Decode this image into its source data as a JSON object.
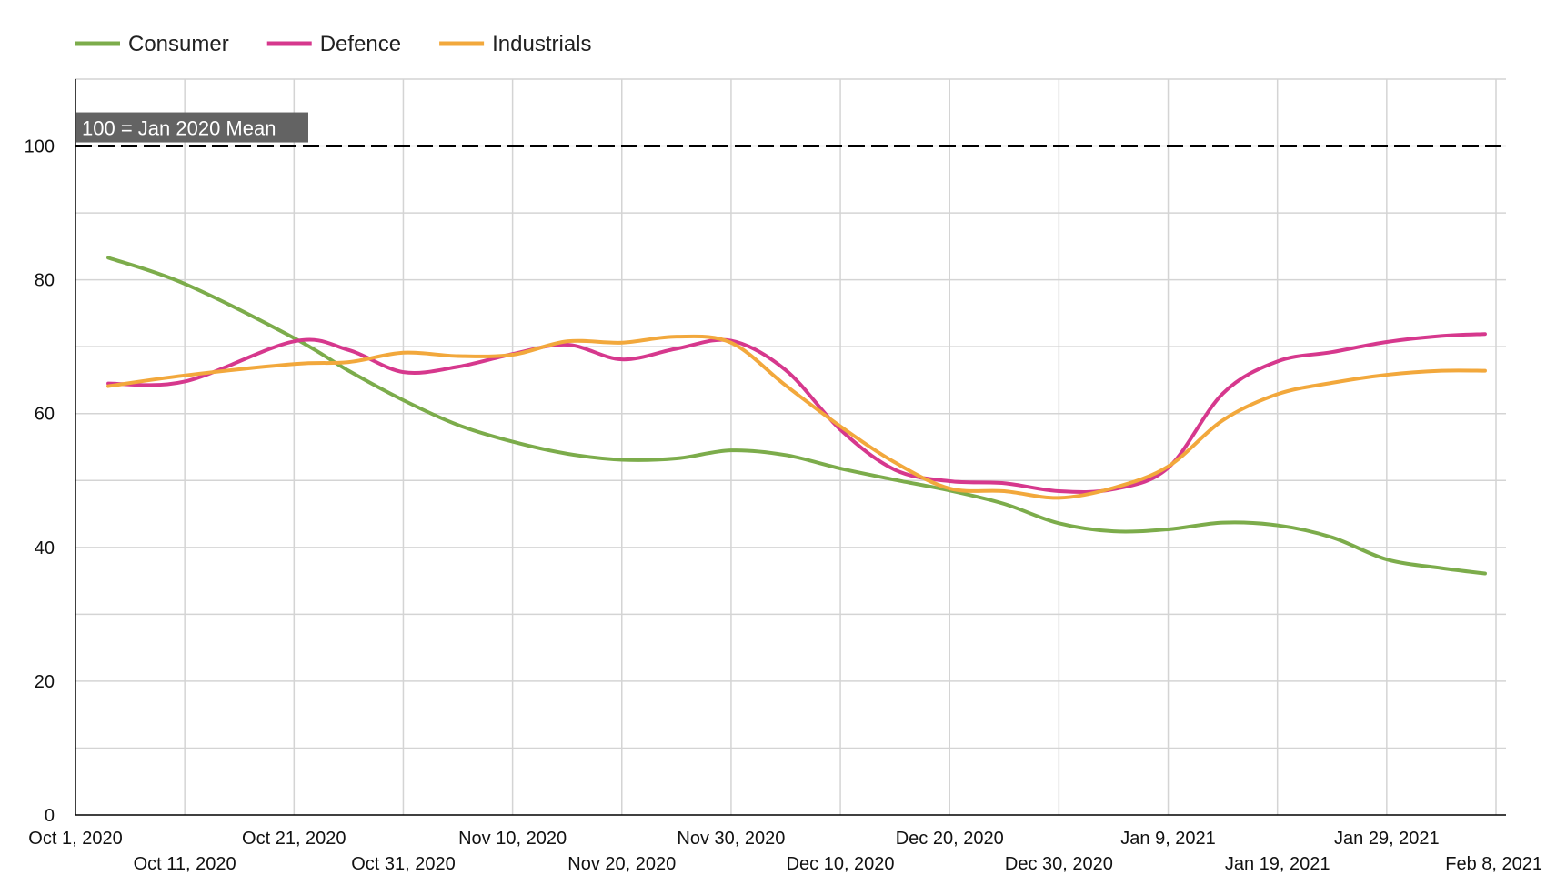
{
  "chart_data": {
    "type": "line",
    "title": "",
    "xlabel": "",
    "ylabel": "",
    "x_axis": {
      "type": "date",
      "min": "2020-10-01",
      "max": "2021-02-08",
      "ticks_row1": [
        "Oct 1, 2020",
        "Oct 21, 2020",
        "Nov 10, 2020",
        "Nov 30, 2020",
        "Dec 20, 2020",
        "Jan 9, 2021",
        "Jan 29, 2021"
      ],
      "ticks_row2": [
        "Oct 11, 2020",
        "Oct 31, 2020",
        "Nov 20, 2020",
        "Dec 10, 2020",
        "Dec 30, 2020",
        "Jan 19, 2021",
        "Feb 8, 2021"
      ]
    },
    "y_axis": {
      "min": 0,
      "max": 110,
      "ticks": [
        0,
        20,
        40,
        60,
        80,
        100
      ],
      "minor_gridlines": [
        10,
        30,
        50,
        70,
        90
      ]
    },
    "grid": true,
    "legend_position": "top-left",
    "reference_line": {
      "y": 100,
      "label": "100 = Jan 2020 Mean",
      "style": "dashed",
      "color": "#000000"
    },
    "x": [
      "2020-10-04",
      "2020-10-11",
      "2020-10-21",
      "2020-10-26",
      "2020-10-31",
      "2020-11-05",
      "2020-11-10",
      "2020-11-15",
      "2020-11-20",
      "2020-11-25",
      "2020-11-30",
      "2020-12-05",
      "2020-12-10",
      "2020-12-15",
      "2020-12-20",
      "2020-12-25",
      "2020-12-30",
      "2021-01-04",
      "2021-01-09",
      "2021-01-14",
      "2021-01-19",
      "2021-01-24",
      "2021-01-29",
      "2021-02-03",
      "2021-02-07"
    ],
    "series": [
      {
        "name": "Consumer",
        "color": "#7cac4b",
        "values": [
          83.3,
          79.4,
          71.3,
          66.4,
          62.0,
          58.3,
          55.8,
          54.0,
          53.1,
          53.3,
          54.5,
          53.8,
          51.8,
          50.1,
          48.5,
          46.5,
          43.6,
          42.4,
          42.7,
          43.7,
          43.3,
          41.5,
          38.2,
          36.9,
          36.1
        ]
      },
      {
        "name": "Defence",
        "color": "#d6388d",
        "values": [
          64.5,
          64.8,
          70.8,
          69.5,
          66.2,
          67.0,
          68.9,
          70.3,
          68.1,
          69.7,
          70.9,
          66.5,
          57.6,
          51.6,
          49.9,
          49.6,
          48.4,
          48.7,
          51.9,
          63.0,
          67.8,
          69.2,
          70.7,
          71.6,
          71.9
        ]
      },
      {
        "name": "Industrials",
        "color": "#f2a83c",
        "values": [
          64.1,
          65.7,
          67.4,
          67.7,
          69.1,
          68.6,
          68.8,
          70.8,
          70.6,
          71.5,
          70.6,
          64.2,
          58.1,
          52.7,
          48.8,
          48.4,
          47.4,
          48.9,
          52.1,
          59.0,
          62.9,
          64.6,
          65.8,
          66.4,
          66.4
        ]
      }
    ]
  }
}
